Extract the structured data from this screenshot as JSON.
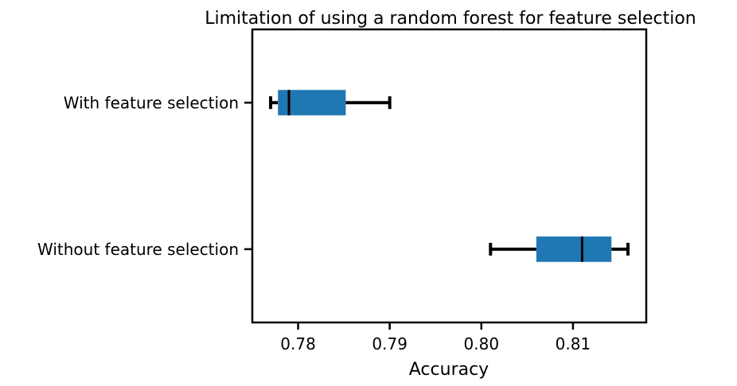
{
  "chart_data": {
    "type": "boxplot",
    "orientation": "horizontal",
    "title": "Limitation of using a random forest for feature selection",
    "xlabel": "Accuracy",
    "ylabel": "",
    "xlim": [
      0.775,
      0.818
    ],
    "x_ticks": [
      0.78,
      0.79,
      0.8,
      0.81
    ],
    "x_tick_labels": [
      "0.78",
      "0.79",
      "0.80",
      "0.81"
    ],
    "grid": false,
    "box_color": "#1f77b4",
    "whisker_color": "#000000",
    "median_color": "#000000",
    "series": [
      {
        "name": "With feature selection",
        "min": 0.777,
        "q1": 0.7778,
        "median": 0.779,
        "q3": 0.7852,
        "max": 0.79
      },
      {
        "name": "Without feature selection",
        "min": 0.801,
        "q1": 0.806,
        "median": 0.811,
        "q3": 0.8142,
        "max": 0.816
      }
    ]
  }
}
